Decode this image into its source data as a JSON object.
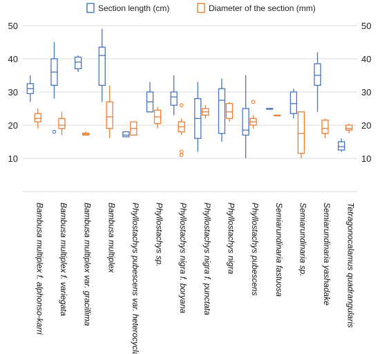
{
  "chart_data": {
    "type": "box",
    "ylim": [
      0,
      50
    ],
    "yticks": [
      10,
      20,
      30,
      40,
      50
    ],
    "grid": true,
    "legend_position": "top",
    "categories": [
      "Bambusa multiplex f. alphonso-karri",
      "Bambusa multiplex f. variegata",
      "Bambusa multiplex var. gracillima",
      "Bambusa multiplex",
      "Phyllostachys pubescens var. heterocycla",
      "Phyllostachys sp.",
      "Phyllostachys nigra f. boryana",
      "Phyllostachys nigra f. punctata",
      "Phyllostachys nigra",
      "Phyllostachys pubescens",
      "Semiarundinaria fastuosa",
      "Semiarundinaria sp.",
      "Semiarundinaria yashadake",
      "Tetragonocalamus quadrangularis"
    ],
    "series": [
      {
        "name": "Section length (cm)",
        "color": "#4472C4",
        "boxes": [
          {
            "min": 27,
            "q1": 29.5,
            "median": 31,
            "q3": 32.5,
            "max": 35,
            "outliers": []
          },
          {
            "min": 28,
            "q1": 32,
            "median": 36,
            "q3": 40,
            "max": 45,
            "outliers": [
              18
            ]
          },
          {
            "min": 36,
            "q1": 37,
            "median": 39,
            "q3": 40.5,
            "max": 41,
            "outliers": []
          },
          {
            "min": 27,
            "q1": 32,
            "median": 41,
            "q3": 43.5,
            "max": 49,
            "outliers": []
          },
          {
            "min": 16.5,
            "q1": 16.5,
            "median": 17,
            "q3": 18,
            "max": 18,
            "outliers": []
          },
          {
            "min": 24,
            "q1": 24,
            "median": 27,
            "q3": 30,
            "max": 33,
            "outliers": []
          },
          {
            "min": 23,
            "q1": 26,
            "median": 28.5,
            "q3": 30,
            "max": 35,
            "outliers": []
          },
          {
            "min": 12,
            "q1": 16,
            "median": 22,
            "q3": 28,
            "max": 33,
            "outliers": []
          },
          {
            "min": 15,
            "q1": 17.5,
            "median": 27.5,
            "q3": 31,
            "max": 34,
            "outliers": []
          },
          {
            "min": 10,
            "q1": 17,
            "median": 18.5,
            "q3": 25,
            "max": 35,
            "outliers": []
          },
          {
            "min": 25,
            "q1": 25,
            "median": 25,
            "q3": 25,
            "max": 25,
            "outliers": []
          },
          {
            "min": 22,
            "q1": 23.5,
            "median": 26.5,
            "q3": 30,
            "max": 31,
            "outliers": []
          },
          {
            "min": 24,
            "q1": 32,
            "median": 35,
            "q3": 38.5,
            "max": 42,
            "outliers": []
          },
          {
            "min": 12,
            "q1": 12.5,
            "median": 13.5,
            "q3": 15,
            "max": 16,
            "outliers": []
          }
        ]
      },
      {
        "name": "Diameter of the section (mm)",
        "color": "#ED7D31",
        "boxes": [
          {
            "min": 19,
            "q1": 21,
            "median": 22,
            "q3": 23.5,
            "max": 25,
            "outliers": []
          },
          {
            "min": 17,
            "q1": 19,
            "median": 20,
            "q3": 22,
            "max": 24,
            "outliers": []
          },
          {
            "min": 17,
            "q1": 17,
            "median": 17.3,
            "q3": 17.6,
            "max": 18,
            "outliers": []
          },
          {
            "min": 16,
            "q1": 19,
            "median": 22.5,
            "q3": 27,
            "max": 32,
            "outliers": []
          },
          {
            "min": 17,
            "q1": 17,
            "median": 19,
            "q3": 21,
            "max": 21,
            "outliers": []
          },
          {
            "min": 19,
            "q1": 20.5,
            "median": 22.5,
            "q3": 24.5,
            "max": 25.5,
            "outliers": []
          },
          {
            "min": 17,
            "q1": 18,
            "median": 19.5,
            "q3": 21,
            "max": 22,
            "outliers": [
              26,
              12,
              11
            ]
          },
          {
            "min": 22,
            "q1": 23,
            "median": 24,
            "q3": 25,
            "max": 26,
            "outliers": []
          },
          {
            "min": 21,
            "q1": 22,
            "median": 24,
            "q3": 26.5,
            "max": 27,
            "outliers": []
          },
          {
            "min": 19,
            "q1": 20,
            "median": 21,
            "q3": 22,
            "max": 23,
            "outliers": [
              27
            ]
          },
          {
            "min": 23,
            "q1": 23,
            "median": 23,
            "q3": 23,
            "max": 23,
            "outliers": []
          },
          {
            "min": 10,
            "q1": 11.5,
            "median": 17.5,
            "q3": 24,
            "max": 24,
            "outliers": []
          },
          {
            "min": 16,
            "q1": 17.5,
            "median": 19,
            "q3": 21.5,
            "max": 22,
            "outliers": []
          },
          {
            "min": 17.5,
            "q1": 18.5,
            "median": 19,
            "q3": 20,
            "max": 20.5,
            "outliers": []
          }
        ]
      }
    ]
  }
}
